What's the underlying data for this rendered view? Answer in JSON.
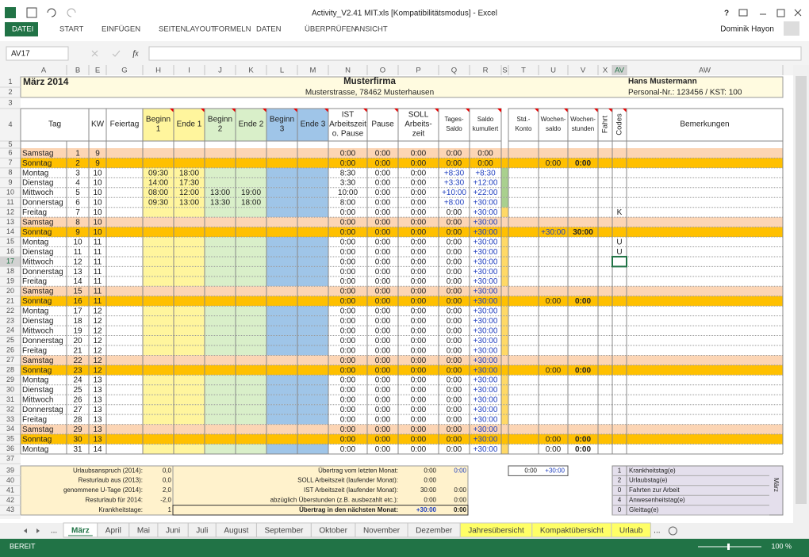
{
  "window": {
    "title": "Activity_V2.41 MIT.xls  [Kompatibilitätsmodus] - Excel",
    "help": "?",
    "user": "Dominik Hayon"
  },
  "ribbon_tabs": [
    "DATEI",
    "START",
    "EINFÜGEN",
    "SEITENLAYOUT",
    "FORMELN",
    "DATEN",
    "ÜBERPRÜFEN",
    "ANSICHT"
  ],
  "formula_bar": {
    "name_box": "AV17",
    "fx": "fx"
  },
  "column_letters": [
    "A",
    "B",
    "E",
    "G",
    "H",
    "I",
    "J",
    "K",
    "L",
    "M",
    "N",
    "O",
    "P",
    "Q",
    "R",
    "S",
    "T",
    "U",
    "V",
    "X",
    "AV",
    "AW"
  ],
  "row_numbers": [
    1,
    2,
    3,
    4,
    5,
    6,
    7,
    8,
    9,
    10,
    11,
    12,
    13,
    14,
    15,
    16,
    17,
    18,
    19,
    20,
    21,
    22,
    23,
    24,
    25,
    26,
    27,
    28,
    29,
    30,
    31,
    32,
    33,
    34,
    35,
    36,
    37,
    39,
    40,
    41,
    42,
    43
  ],
  "sheet": {
    "month": "März 2014",
    "company": "Musterfirma",
    "address": "Musterstrasse, 78462 Musterhausen",
    "employee": "Hans Mustermann",
    "personnel": "Personal-Nr.: 123456 / KST: 100",
    "headers": [
      [
        "Tag"
      ],
      [
        "KW"
      ],
      [
        "Feiertag"
      ],
      [
        "Beginn",
        "1"
      ],
      [
        "Ende 1"
      ],
      [
        "Beginn",
        "2"
      ],
      [
        "Ende 2"
      ],
      [
        "Beginn",
        "3"
      ],
      [
        "Ende 3"
      ],
      [
        "IST",
        "Arbeitszeit",
        "o. Pause"
      ],
      [
        "Pause"
      ],
      [
        "SOLL",
        "Arbeits-",
        "zeit"
      ],
      [
        "Tages-",
        "Saldo"
      ],
      [
        "Saldo",
        "kumuliert"
      ],
      [
        "Std.-",
        "Konto"
      ],
      [
        "Wochen-",
        "saldo"
      ],
      [
        "Wochen-",
        "stunden"
      ],
      [
        "Fahrt"
      ],
      [
        "Codes"
      ],
      [
        "Bemerkungen"
      ]
    ],
    "days": [
      [
        "Samstag",
        "1",
        "9",
        null,
        null,
        null,
        null,
        "0:00",
        "0:00",
        "0:00",
        "0:00",
        "0:00",
        null,
        null,
        null
      ],
      [
        "Sonntag",
        "2",
        "9",
        null,
        null,
        null,
        null,
        "0:00",
        "0:00",
        "0:00",
        "0:00",
        "0:00",
        "0:00",
        "0:00",
        null
      ],
      [
        "Montag",
        "3",
        "10",
        "09:30",
        "18:00",
        null,
        null,
        "8:30",
        "0:00",
        "0:00",
        "+8:30",
        "+8:30",
        null,
        null,
        null
      ],
      [
        "Dienstag",
        "4",
        "10",
        "14:00",
        "17:30",
        null,
        null,
        "3:30",
        "0:00",
        "0:00",
        "+3:30",
        "+12:00",
        null,
        null,
        null
      ],
      [
        "Mittwoch",
        "5",
        "10",
        "08:00",
        "12:00",
        "13:00",
        "19:00",
        "10:00",
        "0:00",
        "0:00",
        "+10:00",
        "+22:00",
        null,
        null,
        null
      ],
      [
        "Donnerstag",
        "6",
        "10",
        "09:30",
        "13:00",
        "13:30",
        "18:00",
        "8:00",
        "0:00",
        "0:00",
        "+8:00",
        "+30:00",
        null,
        null,
        null
      ],
      [
        "Freitag",
        "7",
        "10",
        null,
        null,
        null,
        null,
        "0:00",
        "0:00",
        "0:00",
        "0:00",
        "+30:00",
        null,
        null,
        "K"
      ],
      [
        "Samstag",
        "8",
        "10",
        null,
        null,
        null,
        null,
        "0:00",
        "0:00",
        "0:00",
        "0:00",
        "+30:00",
        null,
        null,
        null
      ],
      [
        "Sonntag",
        "9",
        "10",
        null,
        null,
        null,
        null,
        "0:00",
        "0:00",
        "0:00",
        "0:00",
        "+30:00",
        "+30:00",
        "30:00",
        null
      ],
      [
        "Montag",
        "10",
        "11",
        null,
        null,
        null,
        null,
        "0:00",
        "0:00",
        "0:00",
        "0:00",
        "+30:00",
        null,
        null,
        "U"
      ],
      [
        "Dienstag",
        "11",
        "11",
        null,
        null,
        null,
        null,
        "0:00",
        "0:00",
        "0:00",
        "0:00",
        "+30:00",
        null,
        null,
        "U"
      ],
      [
        "Mittwoch",
        "12",
        "11",
        null,
        null,
        null,
        null,
        "0:00",
        "0:00",
        "0:00",
        "0:00",
        "+30:00",
        null,
        null,
        null
      ],
      [
        "Donnerstag",
        "13",
        "11",
        null,
        null,
        null,
        null,
        "0:00",
        "0:00",
        "0:00",
        "0:00",
        "+30:00",
        null,
        null,
        null
      ],
      [
        "Freitag",
        "14",
        "11",
        null,
        null,
        null,
        null,
        "0:00",
        "0:00",
        "0:00",
        "0:00",
        "+30:00",
        null,
        null,
        null
      ],
      [
        "Samstag",
        "15",
        "11",
        null,
        null,
        null,
        null,
        "0:00",
        "0:00",
        "0:00",
        "0:00",
        "+30:00",
        null,
        null,
        null
      ],
      [
        "Sonntag",
        "16",
        "11",
        null,
        null,
        null,
        null,
        "0:00",
        "0:00",
        "0:00",
        "0:00",
        "+30:00",
        "0:00",
        "0:00",
        null
      ],
      [
        "Montag",
        "17",
        "12",
        null,
        null,
        null,
        null,
        "0:00",
        "0:00",
        "0:00",
        "0:00",
        "+30:00",
        null,
        null,
        null
      ],
      [
        "Dienstag",
        "18",
        "12",
        null,
        null,
        null,
        null,
        "0:00",
        "0:00",
        "0:00",
        "0:00",
        "+30:00",
        null,
        null,
        null
      ],
      [
        "Mittwoch",
        "19",
        "12",
        null,
        null,
        null,
        null,
        "0:00",
        "0:00",
        "0:00",
        "0:00",
        "+30:00",
        null,
        null,
        null
      ],
      [
        "Donnerstag",
        "20",
        "12",
        null,
        null,
        null,
        null,
        "0:00",
        "0:00",
        "0:00",
        "0:00",
        "+30:00",
        null,
        null,
        null
      ],
      [
        "Freitag",
        "21",
        "12",
        null,
        null,
        null,
        null,
        "0:00",
        "0:00",
        "0:00",
        "0:00",
        "+30:00",
        null,
        null,
        null
      ],
      [
        "Samstag",
        "22",
        "12",
        null,
        null,
        null,
        null,
        "0:00",
        "0:00",
        "0:00",
        "0:00",
        "+30:00",
        null,
        null,
        null
      ],
      [
        "Sonntag",
        "23",
        "12",
        null,
        null,
        null,
        null,
        "0:00",
        "0:00",
        "0:00",
        "0:00",
        "+30:00",
        "0:00",
        "0:00",
        null
      ],
      [
        "Montag",
        "24",
        "13",
        null,
        null,
        null,
        null,
        "0:00",
        "0:00",
        "0:00",
        "0:00",
        "+30:00",
        null,
        null,
        null
      ],
      [
        "Dienstag",
        "25",
        "13",
        null,
        null,
        null,
        null,
        "0:00",
        "0:00",
        "0:00",
        "0:00",
        "+30:00",
        null,
        null,
        null
      ],
      [
        "Mittwoch",
        "26",
        "13",
        null,
        null,
        null,
        null,
        "0:00",
        "0:00",
        "0:00",
        "0:00",
        "+30:00",
        null,
        null,
        null
      ],
      [
        "Donnerstag",
        "27",
        "13",
        null,
        null,
        null,
        null,
        "0:00",
        "0:00",
        "0:00",
        "0:00",
        "+30:00",
        null,
        null,
        null
      ],
      [
        "Freitag",
        "28",
        "13",
        null,
        null,
        null,
        null,
        "0:00",
        "0:00",
        "0:00",
        "0:00",
        "+30:00",
        null,
        null,
        null
      ],
      [
        "Samstag",
        "29",
        "13",
        null,
        null,
        null,
        null,
        "0:00",
        "0:00",
        "0:00",
        "0:00",
        "+30:00",
        null,
        null,
        null
      ],
      [
        "Sonntag",
        "30",
        "13",
        null,
        null,
        null,
        null,
        "0:00",
        "0:00",
        "0:00",
        "0:00",
        "+30:00",
        "0:00",
        "0:00",
        null
      ],
      [
        "Montag",
        "31",
        "14",
        null,
        null,
        null,
        null,
        "0:00",
        "0:00",
        "0:00",
        "0:00",
        "+30:00",
        "0:00",
        "0:00",
        null
      ]
    ],
    "footer": {
      "left": [
        [
          "Urlaubsanspruch (2014):",
          "0,0"
        ],
        [
          "Resturlaub aus (2013):",
          "0,0"
        ],
        [
          "genommene U-Tage (2014):",
          "2,0"
        ],
        [
          "Resturlaub für 2014:",
          "-2,0"
        ],
        [
          "Krankheitstage:",
          "1"
        ]
      ],
      "middle": [
        [
          "Übertrag vom letzten Monat:",
          "0:00",
          "0:00"
        ],
        [
          "SOLL Arbeitszeit (laufender Monat):",
          "0:00",
          null
        ],
        [
          "IST Arbeitszeit (laufender Monat):",
          "30:00",
          "0:00"
        ],
        [
          "abzüglich Überstunden (z.B. ausbezahlt etc.):",
          "0:00",
          "0:00"
        ],
        [
          "Übertrag in den nächsten Monat:",
          "+30:00",
          "0:00"
        ]
      ],
      "konto": [
        "0:00",
        "+30:00"
      ],
      "legend": [
        [
          "1",
          "Krankheitstag(e)"
        ],
        [
          "2",
          "Urlaubstag(e)"
        ],
        [
          "0",
          "Fahrten zur Arbeit"
        ],
        [
          "4",
          "Anwesenheitstag(e)"
        ],
        [
          "0",
          "Gleittag(e)"
        ]
      ],
      "legend_title": "März"
    }
  },
  "tab_ellipsis": "...",
  "sheet_tabs": [
    "März",
    "April",
    "Mai",
    "Juni",
    "Juli",
    "August",
    "September",
    "Oktober",
    "November",
    "Dezember",
    "Jahresübersicht",
    "Kompaktübersicht",
    "Urlaub"
  ],
  "status": {
    "mode": "BEREIT",
    "zoom": "100 %"
  }
}
